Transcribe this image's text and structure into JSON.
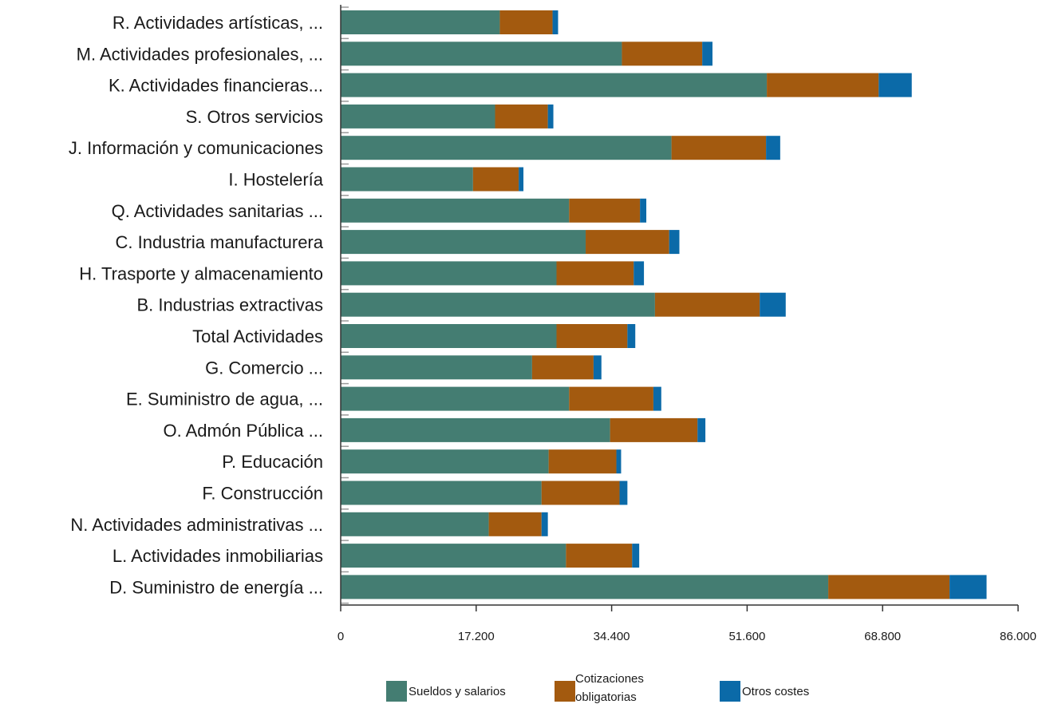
{
  "chart_data": {
    "type": "bar",
    "orientation": "horizontal",
    "stacked": true,
    "title": "",
    "xlabel": "",
    "ylabel": "",
    "xlim": [
      0,
      86000
    ],
    "x_ticks": [
      0,
      17200,
      34400,
      51600,
      68800,
      86000
    ],
    "x_tick_labels": [
      "0",
      "17.200",
      "34.400",
      "51.600",
      "68.800",
      "86.000"
    ],
    "grid": false,
    "legend_position": "bottom",
    "categories": [
      "R. Actividades artísticas, ...",
      "M. Actividades profesionales, ...",
      "K. Actividades financieras...",
      "S. Otros servicios",
      "J. Información y comunicaciones",
      "I. Hostelería",
      "Q. Actividades sanitarias ...",
      "C. Industria manufacturera",
      "H. Trasporte y almacenamiento",
      "B. Industrias extractivas",
      "Total Actividades",
      "G. Comercio ...",
      "E. Suministro de agua, ...",
      "O. Admón Pública ...",
      "P. Educación",
      "F. Construcción",
      "N. Actividades administrativas ...",
      "L. Actividades inmobiliarias",
      "D. Suministro de energía ..."
    ],
    "series": [
      {
        "name": "Sueldos y salarios",
        "color": "#447d72",
        "values": [
          20200,
          35700,
          54100,
          19600,
          42000,
          16800,
          29000,
          31100,
          27400,
          39900,
          27400,
          24300,
          29000,
          34200,
          26400,
          25500,
          18800,
          28600,
          61900
        ]
      },
      {
        "name": "Cotizaciones obligatorias",
        "color": "#a35a0f",
        "values": [
          6700,
          10200,
          14200,
          6700,
          12000,
          5800,
          9000,
          10600,
          9800,
          13300,
          9000,
          7800,
          10700,
          11100,
          8600,
          9900,
          6700,
          8400,
          15400
        ]
      },
      {
        "name": "Otros costes",
        "color": "#0b6aa8",
        "values": [
          700,
          1300,
          4200,
          700,
          1800,
          600,
          800,
          1300,
          1300,
          3300,
          1000,
          1000,
          1000,
          1000,
          600,
          1000,
          800,
          900,
          4700
        ]
      }
    ],
    "legend_labels": [
      "Sueldos y salarios",
      "Cotizaciones obligatorias",
      "Otros costes"
    ]
  }
}
